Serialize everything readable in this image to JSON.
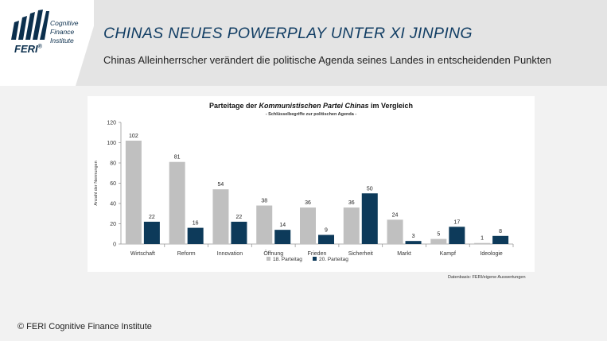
{
  "header": {
    "title": "CHINAS NEUES POWERPLAY UNTER XI JINPING",
    "subtitle": "Chinas Alleinherrscher verändert die politische Agenda seines Landes in entscheidenden Punkten"
  },
  "logo": {
    "brand": "FERI",
    "reg": "®",
    "line1": "Cognitive",
    "line2": "Finance",
    "line3": "Institute"
  },
  "chart_title_parts": {
    "pre": "Parteitage der ",
    "em": "Kommunistischen Partei Chinas",
    "post": " im Vergleich"
  },
  "chart_data": {
    "type": "bar",
    "title": "Parteitage der Kommunistischen Partei Chinas im Vergleich",
    "subtitle": "- Schlüsselbegriffe zur politischen Agenda -",
    "ylabel": "Anzahl der Nennungen",
    "xlabel": "",
    "ylim": [
      0,
      120
    ],
    "yticks": [
      0,
      20,
      40,
      60,
      80,
      100,
      120
    ],
    "categories": [
      "Wirtschaft",
      "Reform",
      "Innovation",
      "Öffnung",
      "Frieden",
      "Sicherheit",
      "Markt",
      "Kampf",
      "Ideologie"
    ],
    "series": [
      {
        "name": "18. Parteitag",
        "color": "#c0c0c0",
        "values": [
          102,
          81,
          54,
          38,
          36,
          36,
          24,
          5,
          1
        ]
      },
      {
        "name": "20. Parteitag",
        "color": "#0d3a5a",
        "values": [
          22,
          16,
          22,
          14,
          9,
          50,
          3,
          17,
          8
        ]
      }
    ],
    "legend_position": "bottom",
    "grid": false,
    "data_labels": true
  },
  "source": "Datenbasis: FERI/eigene Auswertungen",
  "footer": "© FERI Cognitive Finance Institute",
  "colors": {
    "brand_navy": "#123e64",
    "series1": "#c0c0c0",
    "series2": "#0d3a5a",
    "header_band": "#e4e4e4"
  }
}
